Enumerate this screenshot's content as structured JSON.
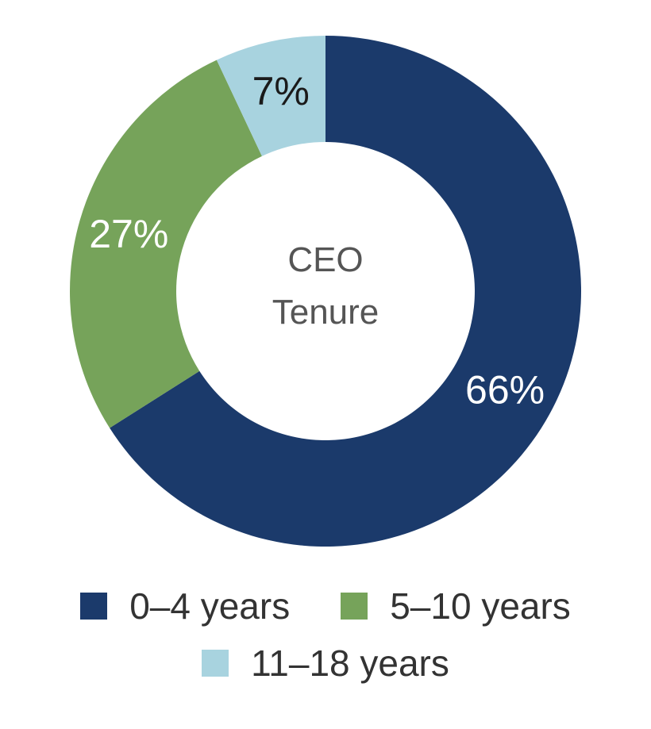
{
  "chart_data": {
    "type": "pie",
    "center_label": [
      "CEO",
      "Tenure"
    ],
    "slices": [
      {
        "label": "0–4 years",
        "value": 66,
        "display": "66%",
        "color": "#1b3a6b",
        "label_color": "#ffffff"
      },
      {
        "label": "5–10 years",
        "value": 27,
        "display": "27%",
        "color": "#76a35a",
        "label_color": "#ffffff"
      },
      {
        "label": "11–18 years",
        "value": 7,
        "display": "7%",
        "color": "#a8d3df",
        "label_color": "#1a1a1a"
      }
    ],
    "legend": {
      "position": "bottom"
    }
  }
}
